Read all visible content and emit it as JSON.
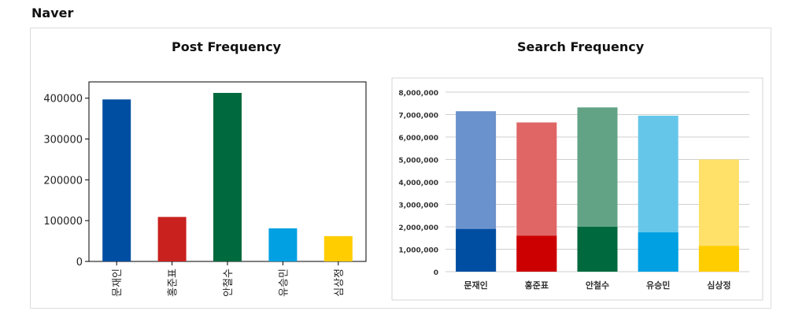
{
  "page": {
    "title": "Naver"
  },
  "chart_data": [
    {
      "type": "bar",
      "title": "Post Frequency",
      "categories": [
        "문재인",
        "홍준표",
        "안철수",
        "유승민",
        "심상정"
      ],
      "values": [
        397000,
        109000,
        413000,
        81000,
        62000
      ],
      "colors": [
        "#004ea2",
        "#c9211e",
        "#00693e",
        "#00a0e2",
        "#ffcd00"
      ],
      "ylim": [
        0,
        440000
      ],
      "yticks": [
        0,
        100000,
        200000,
        300000,
        400000
      ],
      "ytick_labels": [
        "0",
        "100000",
        "200000",
        "300000",
        "400000"
      ],
      "grid": false
    },
    {
      "type": "bar",
      "title": "Search Frequency",
      "categories": [
        "문재인",
        "홍준표",
        "안철수",
        "유승민",
        "심상정"
      ],
      "series": [
        {
          "values": [
            1900000,
            1600000,
            2000000,
            1750000,
            1150000
          ]
        },
        {
          "values": [
            7150000,
            6650000,
            7320000,
            6950000,
            5000000
          ]
        }
      ],
      "colors_front": [
        "#004ea2",
        "#cc0000",
        "#00693e",
        "#00a0e2",
        "#ffcd00"
      ],
      "colors_back": [
        "#6a92cc",
        "#e06666",
        "#62a386",
        "#66c6ea",
        "#ffe16a"
      ],
      "ylim": [
        0,
        8000000
      ],
      "yticks": [
        0,
        1000000,
        2000000,
        3000000,
        4000000,
        5000000,
        6000000,
        7000000,
        8000000
      ],
      "ytick_labels": [
        "0",
        "1,000,000",
        "2,000,000",
        "3,000,000",
        "4,000,000",
        "5,000,000",
        "6,000,000",
        "7,000,000",
        "8,000,000"
      ],
      "grid": true
    }
  ]
}
